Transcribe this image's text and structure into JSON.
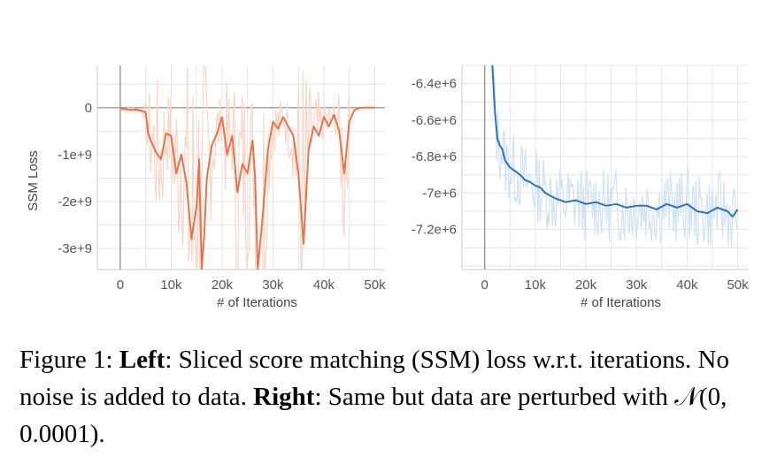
{
  "chart_data": [
    {
      "type": "line",
      "name": "left",
      "title": "",
      "xlabel": "# of Iterations",
      "ylabel": "SSM Loss",
      "xlim": [
        -4500,
        52000
      ],
      "ylim": [
        -3450000000.0,
        900000000.0
      ],
      "xticks": [
        0,
        10000,
        20000,
        30000,
        40000,
        50000
      ],
      "xtick_labels": [
        "0",
        "10k",
        "20k",
        "30k",
        "40k",
        "50k"
      ],
      "yticks": [
        0,
        -1000000000.0,
        -2000000000.0,
        -3000000000.0
      ],
      "ytick_labels": [
        "0",
        "-1e+9",
        "-2e+9",
        "-3e+9"
      ],
      "grid": true,
      "series": [
        {
          "name": "smoothed",
          "color": "#e8734a",
          "raw_color": "#f9d5c6",
          "x": [
            0,
            1000,
            2000,
            3000,
            4000,
            5000,
            5500,
            6000,
            7000,
            8000,
            9000,
            10000,
            11000,
            12000,
            13000,
            14000,
            15000,
            15500,
            16000,
            16500,
            17000,
            18000,
            19000,
            20000,
            21000,
            22000,
            23000,
            24000,
            25000,
            26000,
            26500,
            27000,
            28000,
            29000,
            30000,
            31000,
            32000,
            33000,
            34000,
            35000,
            36000,
            37000,
            38000,
            39000,
            40000,
            41000,
            42000,
            43000,
            44000,
            45000,
            46000,
            47000,
            48000,
            49000,
            50000
          ],
          "y": [
            -20000000.0,
            -30000000.0,
            -50000000.0,
            -40000000.0,
            -60000000.0,
            -100000000.0,
            -550000000.0,
            -700000000.0,
            -950000000.0,
            -1100000000.0,
            -550000000.0,
            -600000000.0,
            -1400000000.0,
            -1000000000.0,
            -1600000000.0,
            -2800000000.0,
            -2100000000.0,
            -1100000000.0,
            -3450000000.0,
            -2700000000.0,
            -1500000000.0,
            -800000000.0,
            -550000000.0,
            -200000000.0,
            -1000000000.0,
            -600000000.0,
            -1800000000.0,
            -1200000000.0,
            -1400000000.0,
            -700000000.0,
            -1500000000.0,
            -3450000000.0,
            -2300000000.0,
            -900000000.0,
            -300000000.0,
            -450000000.0,
            -200000000.0,
            -400000000.0,
            -600000000.0,
            -1400000000.0,
            -2900000000.0,
            -900000000.0,
            -400000000.0,
            -600000000.0,
            -200000000.0,
            -400000000.0,
            -150000000.0,
            -500000000.0,
            -1400000000.0,
            -300000000.0,
            -50000000.0,
            -10000000.0,
            0.0,
            0.0,
            0.0
          ]
        }
      ]
    },
    {
      "type": "line",
      "name": "right",
      "title": "",
      "xlabel": "# of Iterations",
      "ylabel": "",
      "xlim": [
        -4500,
        52000
      ],
      "ylim": [
        -7420000.0,
        -6300000.0
      ],
      "xticks": [
        0,
        10000,
        20000,
        30000,
        40000,
        50000
      ],
      "xtick_labels": [
        "0",
        "10k",
        "20k",
        "30k",
        "40k",
        "50k"
      ],
      "yticks": [
        -6400000.0,
        -6600000.0,
        -6800000.0,
        -7000000.0,
        -7200000.0
      ],
      "ytick_labels": [
        "-6.4e+6",
        "-6.6e+6",
        "-6.8e+6",
        "-7e+6",
        "-7.2e+6"
      ],
      "grid": true,
      "series": [
        {
          "name": "smoothed",
          "color": "#2e72b8",
          "raw_color": "#cfe2f3",
          "x": [
            1500,
            2000,
            2500,
            3000,
            3500,
            4000,
            5000,
            6000,
            7000,
            8000,
            9000,
            10000,
            11000,
            12000,
            14000,
            16000,
            18000,
            20000,
            22000,
            24000,
            26000,
            28000,
            30000,
            32000,
            34000,
            36000,
            38000,
            40000,
            42000,
            44000,
            46000,
            48000,
            49000,
            50000
          ],
          "y": [
            -6300000.0,
            -6550000.0,
            -6700000.0,
            -6740000.0,
            -6760000.0,
            -6820000.0,
            -6860000.0,
            -6880000.0,
            -6900000.0,
            -6930000.0,
            -6940000.0,
            -6960000.0,
            -6970000.0,
            -7000000.0,
            -7030000.0,
            -7050000.0,
            -7040000.0,
            -7060000.0,
            -7050000.0,
            -7070000.0,
            -7060000.0,
            -7080000.0,
            -7070000.0,
            -7070000.0,
            -7090000.0,
            -7060000.0,
            -7080000.0,
            -7060000.0,
            -7100000.0,
            -7110000.0,
            -7080000.0,
            -7100000.0,
            -7130000.0,
            -7090000.0
          ]
        }
      ]
    }
  ],
  "caption": {
    "prefix": "Figure 1: ",
    "left_label": "Left",
    "left_text": ": Sliced score matching (SSM) loss w.r.t. iterations. No noise is added to data. ",
    "right_label": "Right",
    "right_text": ": Same but data are perturbed with ",
    "math": "𝒩(0, 0.0001).",
    "suffix": ""
  }
}
